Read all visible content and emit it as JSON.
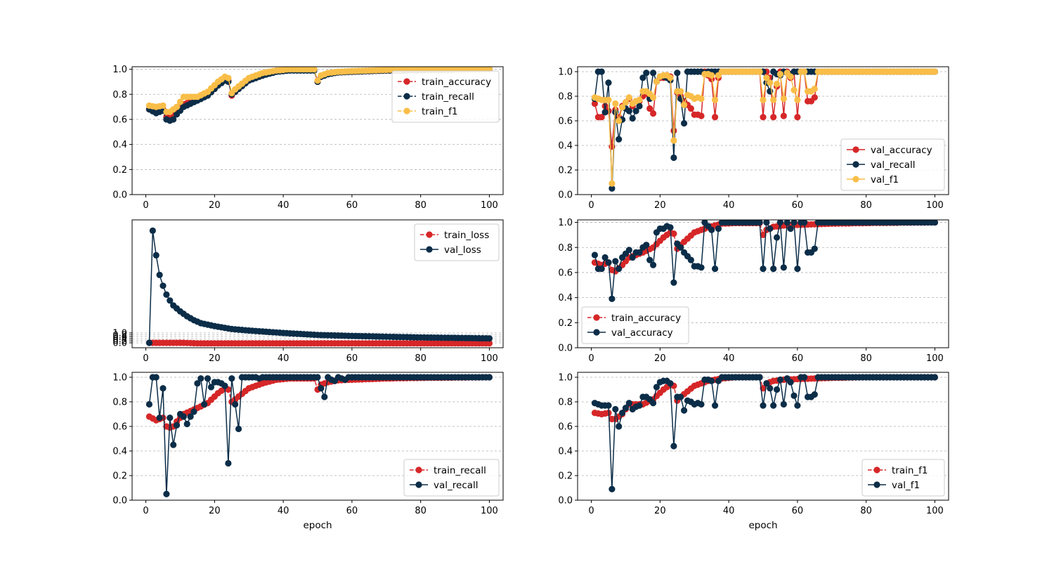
{
  "colors": {
    "red": "#d62728",
    "navy": "#0b2d48",
    "yellow": "#f9be48",
    "grid": "#b0b0b0"
  },
  "chart_data": [
    {
      "id": "train_metrics",
      "type": "line",
      "xlabel": "",
      "ylabel": "",
      "xlim": [
        -4,
        104
      ],
      "ylim": [
        0,
        1.02
      ],
      "xticks": [
        0,
        20,
        40,
        60,
        80,
        100
      ],
      "xtick_labels": [
        "0",
        "20",
        "40",
        "60",
        "80",
        "100"
      ],
      "yticks": [
        0.0,
        0.2,
        0.4,
        0.6,
        0.8,
        1.0
      ],
      "ytick_labels": [
        "0.0",
        "0.2",
        "0.4",
        "0.6",
        "0.8",
        "1.0"
      ],
      "grid": "y",
      "legend_position": "top-right",
      "series": [
        {
          "name": "train_accuracy",
          "color": "#d62728",
          "dash": true,
          "knots": [
            [
              1,
              0.68
            ],
            [
              3,
              0.66
            ],
            [
              5,
              0.68
            ],
            [
              6,
              0.62
            ],
            [
              7,
              0.61
            ],
            [
              9,
              0.66
            ],
            [
              11,
              0.72
            ],
            [
              15,
              0.76
            ],
            [
              18,
              0.8
            ],
            [
              21,
              0.88
            ],
            [
              23,
              0.92
            ],
            [
              24,
              0.91
            ],
            [
              25,
              0.79
            ],
            [
              26,
              0.82
            ],
            [
              30,
              0.92
            ],
            [
              34,
              0.96
            ],
            [
              38,
              0.99
            ],
            [
              42,
              0.995
            ],
            [
              49,
              0.995
            ],
            [
              50,
              0.9
            ],
            [
              51,
              0.94
            ],
            [
              53,
              0.965
            ],
            [
              56,
              0.975
            ],
            [
              60,
              0.98
            ],
            [
              70,
              0.99
            ],
            [
              80,
              0.995
            ],
            [
              100,
              1.0
            ]
          ]
        },
        {
          "name": "train_recall",
          "color": "#0b2d48",
          "dash": true,
          "knots": [
            [
              1,
              0.68
            ],
            [
              3,
              0.65
            ],
            [
              5,
              0.67
            ],
            [
              6,
              0.6
            ],
            [
              7,
              0.59
            ],
            [
              8,
              0.6
            ],
            [
              9,
              0.64
            ],
            [
              11,
              0.7
            ],
            [
              15,
              0.75
            ],
            [
              18,
              0.79
            ],
            [
              21,
              0.87
            ],
            [
              23,
              0.91
            ],
            [
              24,
              0.9
            ],
            [
              25,
              0.8
            ],
            [
              26,
              0.82
            ],
            [
              30,
              0.91
            ],
            [
              34,
              0.95
            ],
            [
              38,
              0.98
            ],
            [
              42,
              0.99
            ],
            [
              49,
              0.99
            ],
            [
              50,
              0.9
            ],
            [
              51,
              0.94
            ],
            [
              53,
              0.96
            ],
            [
              56,
              0.975
            ],
            [
              60,
              0.98
            ],
            [
              70,
              0.99
            ],
            [
              80,
              0.995
            ],
            [
              100,
              1.0
            ]
          ]
        },
        {
          "name": "train_f1",
          "color": "#f9be48",
          "dash": true,
          "knots": [
            [
              1,
              0.71
            ],
            [
              3,
              0.7
            ],
            [
              5,
              0.71
            ],
            [
              6,
              0.66
            ],
            [
              7,
              0.66
            ],
            [
              9,
              0.7
            ],
            [
              11,
              0.78
            ],
            [
              15,
              0.78
            ],
            [
              18,
              0.82
            ],
            [
              21,
              0.9
            ],
            [
              23,
              0.94
            ],
            [
              24,
              0.93
            ],
            [
              25,
              0.81
            ],
            [
              26,
              0.84
            ],
            [
              30,
              0.93
            ],
            [
              34,
              0.97
            ],
            [
              38,
              0.99
            ],
            [
              42,
              1.0
            ],
            [
              49,
              1.0
            ],
            [
              50,
              0.91
            ],
            [
              51,
              0.95
            ],
            [
              53,
              0.97
            ],
            [
              56,
              0.98
            ],
            [
              60,
              0.985
            ],
            [
              70,
              0.995
            ],
            [
              80,
              1.0
            ],
            [
              100,
              1.0
            ]
          ]
        }
      ]
    },
    {
      "id": "val_metrics",
      "type": "line",
      "xlabel": "",
      "ylabel": "",
      "xlim": [
        -4,
        104
      ],
      "ylim": [
        0,
        1.04
      ],
      "xticks": [
        0,
        20,
        40,
        60,
        80,
        100
      ],
      "xtick_labels": [
        "0",
        "20",
        "40",
        "60",
        "80",
        "100"
      ],
      "yticks": [
        0.0,
        0.2,
        0.4,
        0.6,
        0.8,
        1.0
      ],
      "ytick_labels": [
        "0.0",
        "0.2",
        "0.4",
        "0.6",
        "0.8",
        "1.0"
      ],
      "grid": "y",
      "legend_position": "bottom-right",
      "series": [
        {
          "name": "val_accuracy",
          "color": "#d62728",
          "dash": false,
          "values": [
            0.74,
            0.63,
            0.63,
            0.72,
            0.68,
            0.39,
            0.69,
            0.63,
            0.72,
            0.75,
            0.78,
            0.72,
            0.76,
            0.76,
            0.8,
            0.82,
            0.7,
            0.66,
            0.92,
            0.95,
            0.95,
            0.97,
            0.96,
            0.52,
            0.83,
            0.8,
            0.76,
            0.73,
            0.7,
            0.65,
            0.65,
            0.64,
            1.0,
            0.97,
            0.94,
            0.63,
            0.95,
            1.0,
            1.0,
            1.0,
            1.0,
            1.0,
            1.0,
            1.0,
            1.0,
            1.0,
            1.0,
            1.0,
            1.0,
            0.63,
            1.0,
            0.95,
            0.63,
            0.88,
            1.0,
            0.64,
            1.0,
            0.95,
            1.0,
            0.63,
            1.0,
            1.0,
            0.76,
            0.76,
            0.79,
            1.0,
            1.0,
            1.0,
            1.0,
            1.0,
            1.0,
            1.0,
            1.0,
            1.0,
            1.0,
            1.0,
            1.0,
            1.0,
            1.0,
            1.0,
            1.0,
            1.0,
            1.0,
            1.0,
            1.0,
            1.0,
            1.0,
            1.0,
            1.0,
            1.0,
            1.0,
            1.0,
            1.0,
            1.0,
            1.0,
            1.0,
            1.0,
            1.0,
            1.0,
            1.0
          ]
        },
        {
          "name": "val_recall",
          "color": "#0b2d48",
          "dash": false,
          "values": [
            0.78,
            1.0,
            1.0,
            0.67,
            0.91,
            0.05,
            0.67,
            0.45,
            0.61,
            0.7,
            0.68,
            0.62,
            0.68,
            0.72,
            0.95,
            0.99,
            0.78,
            0.99,
            0.92,
            0.96,
            0.96,
            0.95,
            0.93,
            0.3,
            0.99,
            0.78,
            0.58,
            1.0,
            1.0,
            1.0,
            1.0,
            1.0,
            0.99,
            1.0,
            1.0,
            1.0,
            1.0,
            1.0,
            1.0,
            1.0,
            1.0,
            1.0,
            1.0,
            1.0,
            1.0,
            1.0,
            1.0,
            1.0,
            1.0,
            1.0,
            0.91,
            0.84,
            1.0,
            0.98,
            0.97,
            1.0,
            0.99,
            0.98,
            1.0,
            1.0,
            1.0,
            1.0,
            1.0,
            1.0,
            1.0,
            1.0,
            1.0,
            1.0,
            1.0,
            1.0,
            1.0,
            1.0,
            1.0,
            1.0,
            1.0,
            1.0,
            1.0,
            1.0,
            1.0,
            1.0,
            1.0,
            1.0,
            1.0,
            1.0,
            1.0,
            1.0,
            1.0,
            1.0,
            1.0,
            1.0,
            1.0,
            1.0,
            1.0,
            1.0,
            1.0,
            1.0,
            1.0,
            1.0,
            1.0,
            1.0
          ]
        },
        {
          "name": "val_f1",
          "color": "#f9be48",
          "dash": false,
          "values": [
            0.79,
            0.78,
            0.77,
            0.77,
            0.77,
            0.09,
            0.74,
            0.6,
            0.71,
            0.75,
            0.79,
            0.74,
            0.76,
            0.77,
            0.84,
            0.84,
            0.82,
            0.79,
            0.92,
            0.96,
            0.97,
            0.97,
            0.95,
            0.44,
            0.84,
            0.84,
            0.73,
            0.81,
            0.8,
            0.78,
            0.79,
            0.78,
            0.98,
            0.98,
            0.97,
            0.77,
            0.97,
            1.0,
            1.0,
            1.0,
            1.0,
            1.0,
            1.0,
            1.0,
            1.0,
            1.0,
            1.0,
            1.0,
            1.0,
            0.77,
            0.95,
            0.91,
            0.77,
            0.9,
            0.98,
            0.78,
            0.99,
            0.96,
            0.85,
            0.77,
            1.0,
            1.0,
            0.84,
            0.84,
            0.86,
            1.0,
            1.0,
            1.0,
            1.0,
            1.0,
            1.0,
            1.0,
            1.0,
            1.0,
            1.0,
            1.0,
            1.0,
            1.0,
            1.0,
            1.0,
            1.0,
            1.0,
            1.0,
            1.0,
            1.0,
            1.0,
            1.0,
            1.0,
            1.0,
            1.0,
            1.0,
            1.0,
            1.0,
            1.0,
            1.0,
            1.0,
            1.0,
            1.0,
            1.0,
            1.0
          ]
        }
      ]
    },
    {
      "id": "loss",
      "type": "line",
      "xlabel": "",
      "ylabel": "",
      "xlim": [
        -4,
        104
      ],
      "ylim": [
        -0.5,
        12.5
      ],
      "xticks": [
        0,
        20,
        40,
        60,
        80,
        100
      ],
      "xtick_labels": [
        "0",
        "20",
        "40",
        "60",
        "80",
        "100"
      ],
      "yticks": [
        0.0,
        0.2,
        0.4,
        0.6,
        0.8,
        1.0
      ],
      "ytick_labels": [
        "0.0",
        "0.2",
        "0.4",
        "0.6",
        "0.8",
        "1.0"
      ],
      "grid": "y",
      "legend_position": "top-right",
      "series": [
        {
          "name": "train_loss",
          "color": "#d62728",
          "dash": true,
          "knots": [
            [
              1,
              0.0
            ],
            [
              2,
              0.0
            ],
            [
              11,
              0.0
            ],
            [
              15,
              -0.05
            ],
            [
              100,
              -0.05
            ]
          ]
        },
        {
          "name": "val_loss",
          "color": "#0b2d48",
          "dash": false,
          "knots": [
            [
              1,
              0.0
            ],
            [
              2,
              11.4
            ],
            [
              3,
              8.9
            ],
            [
              4,
              6.9
            ],
            [
              5,
              5.8
            ],
            [
              6,
              4.9
            ],
            [
              7,
              4.3
            ],
            [
              8,
              3.8
            ],
            [
              10,
              3.2
            ],
            [
              12,
              2.7
            ],
            [
              14,
              2.3
            ],
            [
              16,
              2.0
            ],
            [
              20,
              1.7
            ],
            [
              25,
              1.4
            ],
            [
              30,
              1.25
            ],
            [
              40,
              1.0
            ],
            [
              50,
              0.8
            ],
            [
              60,
              0.7
            ],
            [
              70,
              0.62
            ],
            [
              80,
              0.55
            ],
            [
              90,
              0.5
            ],
            [
              100,
              0.45
            ]
          ]
        }
      ]
    },
    {
      "id": "accuracy",
      "type": "line",
      "xlabel": "",
      "ylabel": "",
      "xlim": [
        -4,
        104
      ],
      "ylim": [
        0,
        1.02
      ],
      "xticks": [
        0,
        20,
        40,
        60,
        80,
        100
      ],
      "xtick_labels": [
        "0",
        "20",
        "40",
        "60",
        "80",
        "100"
      ],
      "yticks": [
        0.0,
        0.2,
        0.4,
        0.6,
        0.8,
        1.0
      ],
      "ytick_labels": [
        "0.0",
        "0.2",
        "0.4",
        "0.6",
        "0.8",
        "1.0"
      ],
      "grid": "y",
      "legend_position": "bottom-left",
      "series": [
        {
          "name": "train_accuracy",
          "color": "#d62728",
          "dash": true,
          "ref": "train_metrics.train_accuracy"
        },
        {
          "name": "val_accuracy",
          "color": "#0b2d48",
          "dash": false,
          "ref": "val_metrics.val_accuracy"
        }
      ]
    },
    {
      "id": "recall",
      "type": "line",
      "xlabel": "epoch",
      "ylabel": "",
      "xlim": [
        -4,
        104
      ],
      "ylim": [
        0,
        1.04
      ],
      "xticks": [
        0,
        20,
        40,
        60,
        80,
        100
      ],
      "xtick_labels": [
        "0",
        "20",
        "40",
        "60",
        "80",
        "100"
      ],
      "yticks": [
        0.0,
        0.2,
        0.4,
        0.6,
        0.8,
        1.0
      ],
      "ytick_labels": [
        "0.0",
        "0.2",
        "0.4",
        "0.6",
        "0.8",
        "1.0"
      ],
      "grid": "y",
      "legend_position": "bottom-right",
      "series": [
        {
          "name": "train_recall",
          "color": "#d62728",
          "dash": true,
          "ref": "train_metrics.train_recall"
        },
        {
          "name": "val_recall",
          "color": "#0b2d48",
          "dash": false,
          "ref": "val_metrics.val_recall"
        }
      ]
    },
    {
      "id": "f1",
      "type": "line",
      "xlabel": "epoch",
      "ylabel": "",
      "xlim": [
        -4,
        104
      ],
      "ylim": [
        0,
        1.04
      ],
      "xticks": [
        0,
        20,
        40,
        60,
        80,
        100
      ],
      "xtick_labels": [
        "0",
        "20",
        "40",
        "60",
        "80",
        "100"
      ],
      "yticks": [
        0.0,
        0.2,
        0.4,
        0.6,
        0.8,
        1.0
      ],
      "ytick_labels": [
        "0.0",
        "0.2",
        "0.4",
        "0.6",
        "0.8",
        "1.0"
      ],
      "grid": "y",
      "legend_position": "bottom-right",
      "series": [
        {
          "name": "train_f1",
          "color": "#d62728",
          "dash": true,
          "ref": "train_metrics.train_f1"
        },
        {
          "name": "val_f1",
          "color": "#0b2d48",
          "dash": false,
          "ref": "val_metrics.val_f1"
        }
      ]
    }
  ]
}
